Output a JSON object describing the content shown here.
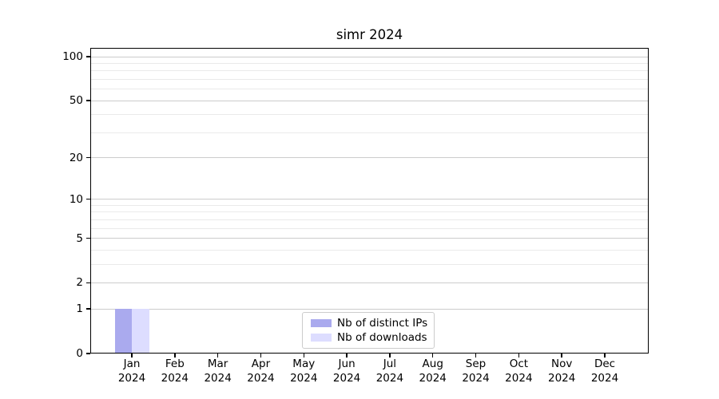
{
  "figure": {
    "title": "simr 2024"
  },
  "chart_data": {
    "type": "bar",
    "title": "simr 2024",
    "categories": [
      "Jan 2024",
      "Feb 2024",
      "Mar 2024",
      "Apr 2024",
      "May 2024",
      "Jun 2024",
      "Jul 2024",
      "Aug 2024",
      "Sep 2024",
      "Oct 2024",
      "Nov 2024",
      "Dec 2024"
    ],
    "x_tick_labels": [
      {
        "month": "Jan",
        "year": "2024"
      },
      {
        "month": "Feb",
        "year": "2024"
      },
      {
        "month": "Mar",
        "year": "2024"
      },
      {
        "month": "Apr",
        "year": "2024"
      },
      {
        "month": "May",
        "year": "2024"
      },
      {
        "month": "Jun",
        "year": "2024"
      },
      {
        "month": "Jul",
        "year": "2024"
      },
      {
        "month": "Aug",
        "year": "2024"
      },
      {
        "month": "Sep",
        "year": "2024"
      },
      {
        "month": "Oct",
        "year": "2024"
      },
      {
        "month": "Nov",
        "year": "2024"
      },
      {
        "month": "Dec",
        "year": "2024"
      }
    ],
    "series": [
      {
        "name": "Nb of distinct IPs",
        "color": "#aaaaee",
        "values": [
          1,
          0,
          0,
          0,
          0,
          0,
          0,
          0,
          0,
          0,
          0,
          0
        ]
      },
      {
        "name": "Nb of downloads",
        "color": "#ddddff",
        "values": [
          1,
          0,
          0,
          0,
          0,
          0,
          0,
          0,
          0,
          0,
          0,
          0
        ]
      }
    ],
    "xlabel": "",
    "ylabel": "",
    "yscale": "log1p",
    "ylim": [
      0,
      115
    ],
    "y_major_ticks": [
      0,
      1,
      2,
      5,
      10,
      20,
      50,
      100
    ],
    "y_minor_ticks": [
      3,
      4,
      6,
      7,
      8,
      9,
      30,
      40,
      60,
      70,
      80,
      90
    ],
    "grid": true,
    "legend": {
      "position": "lower center",
      "entries": [
        "Nb of distinct IPs",
        "Nb of downloads"
      ]
    },
    "colors": {
      "bar_distinct_ips": "#aaaaee",
      "bar_downloads": "#ddddff",
      "grid_major": "#cccccc",
      "grid_minor": "#eaeaea",
      "spine": "#000000",
      "text": "#000000"
    }
  }
}
